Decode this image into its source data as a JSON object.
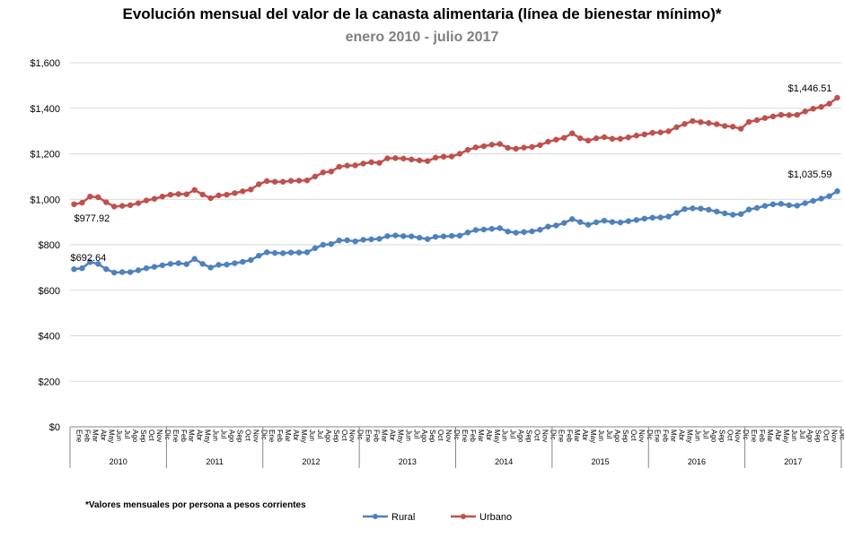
{
  "chart_data": {
    "type": "line",
    "title": "Evolución mensual del valor de la canasta alimentaria (línea de bienestar mínimo)*",
    "subtitle": "enero 2010 - julio 2017",
    "footnote": "*Valores mensuales por persona a pesos corrientes",
    "xlabel": "",
    "ylabel": "",
    "ylim": [
      0,
      1600
    ],
    "yticks": [
      0,
      200,
      400,
      600,
      800,
      1000,
      1200,
      1400,
      1600
    ],
    "ytick_labels": [
      "$0",
      "$200",
      "$400",
      "$600",
      "$800",
      "$1,000",
      "$1,200",
      "$1,400",
      "$1,600"
    ],
    "grid": true,
    "legend": "bottom",
    "months": [
      "Ene",
      "Feb",
      "Mar",
      "Abr",
      "May",
      "Jun",
      "Jul",
      "Ago",
      "Sep",
      "Oct",
      "Nov",
      "Dic"
    ],
    "years": [
      "2010",
      "2011",
      "2012",
      "2013",
      "2014",
      "2015",
      "2016",
      "2017"
    ],
    "series": [
      {
        "name": "Rural",
        "color": "#4f81bd",
        "values": [
          692.64,
          697,
          724,
          716,
          693,
          678,
          680,
          680,
          688,
          697,
          703,
          710,
          716,
          719,
          715,
          738,
          716,
          700,
          712,
          713,
          719,
          725,
          733,
          752,
          767,
          764,
          763,
          766,
          766,
          767,
          785,
          800,
          803,
          819,
          820,
          815,
          822,
          824,
          826,
          838,
          841,
          838,
          837,
          831,
          825,
          835,
          837,
          839,
          840,
          854,
          865,
          867,
          870,
          873,
          858,
          853,
          856,
          859,
          866,
          880,
          885,
          896,
          913,
          900,
          888,
          899,
          906,
          900,
          898,
          904,
          909,
          915,
          919,
          920,
          924,
          940,
          957,
          960,
          959,
          954,
          946,
          938,
          932,
          935,
          955,
          962,
          971,
          978,
          980,
          974,
          972,
          983,
          993,
          1003,
          1014,
          1035.59
        ],
        "end_label": "$1,035.59",
        "start_label": "$692.64"
      },
      {
        "name": "Urbano",
        "color": "#c0504d",
        "values": [
          977.92,
          985,
          1012,
          1009,
          987,
          968,
          971,
          974,
          983,
          995,
          1002,
          1012,
          1020,
          1023,
          1022,
          1041,
          1021,
          1005,
          1017,
          1020,
          1027,
          1035,
          1043,
          1066,
          1080,
          1077,
          1077,
          1081,
          1082,
          1083,
          1100,
          1118,
          1122,
          1143,
          1148,
          1149,
          1157,
          1163,
          1160,
          1180,
          1181,
          1179,
          1175,
          1171,
          1168,
          1183,
          1187,
          1188,
          1200,
          1217,
          1228,
          1233,
          1240,
          1243,
          1226,
          1222,
          1227,
          1230,
          1238,
          1253,
          1262,
          1270,
          1290,
          1268,
          1258,
          1268,
          1273,
          1266,
          1266,
          1272,
          1280,
          1285,
          1292,
          1294,
          1299,
          1317,
          1331,
          1344,
          1339,
          1335,
          1330,
          1322,
          1319,
          1310,
          1340,
          1348,
          1357,
          1364,
          1371,
          1370,
          1371,
          1386,
          1398,
          1406,
          1420,
          1446.51
        ],
        "end_label": "$1,446.51",
        "start_label": "$977.92"
      }
    ]
  }
}
